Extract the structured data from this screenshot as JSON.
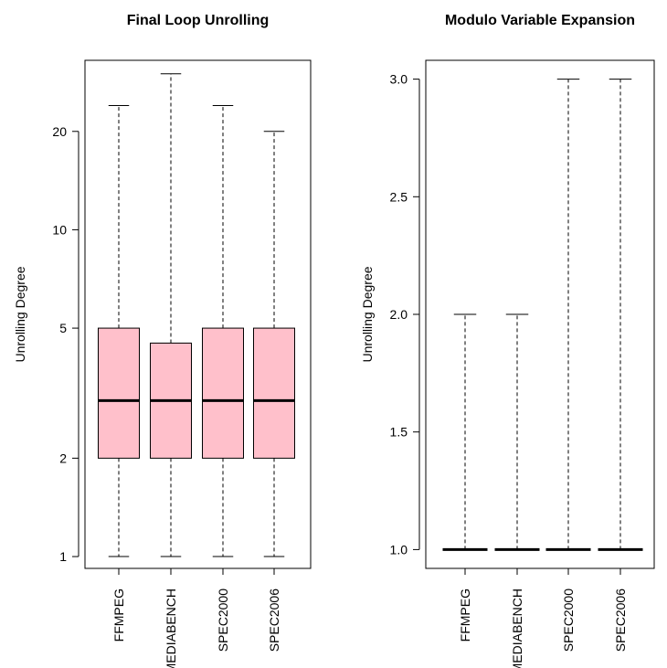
{
  "chart_data": [
    {
      "type": "box",
      "title": "Final Loop Unrolling",
      "xlabel": "",
      "ylabel": "Unrolling Degree",
      "y_scale": "log",
      "ylim": [
        0.92,
        33
      ],
      "yticks": [
        1,
        2,
        5,
        10,
        20
      ],
      "box_color": "#FFC0CB",
      "categories": [
        "FFMPEG",
        "MEDIABENCH",
        "SPEC2000",
        "SPEC2006"
      ],
      "boxes": [
        {
          "category": "FFMPEG",
          "whisker_low": 1,
          "q1": 2,
          "median": 3,
          "q3": 5,
          "whisker_high": 24
        },
        {
          "category": "MEDIABENCH",
          "whisker_low": 1,
          "q1": 2,
          "median": 3,
          "q3": 4.5,
          "whisker_high": 30
        },
        {
          "category": "SPEC2000",
          "whisker_low": 1,
          "q1": 2,
          "median": 3,
          "q3": 5,
          "whisker_high": 24
        },
        {
          "category": "SPEC2006",
          "whisker_low": 1,
          "q1": 2,
          "median": 3,
          "q3": 5,
          "whisker_high": 20
        }
      ]
    },
    {
      "type": "box",
      "title": "Modulo Variable Expansion",
      "xlabel": "",
      "ylabel": "Unrolling Degree",
      "y_scale": "linear",
      "ylim": [
        0.92,
        3.08
      ],
      "yticks": [
        "1.0",
        "1.5",
        "2.0",
        "2.5",
        "3.0"
      ],
      "box_color": "#FFC0CB",
      "categories": [
        "FFMPEG",
        "MEDIABENCH",
        "SPEC2000",
        "SPEC2006"
      ],
      "boxes": [
        {
          "category": "FFMPEG",
          "whisker_low": 1,
          "q1": 1,
          "median": 1,
          "q3": 1,
          "whisker_high": 2
        },
        {
          "category": "MEDIABENCH",
          "whisker_low": 1,
          "q1": 1,
          "median": 1,
          "q3": 1,
          "whisker_high": 2
        },
        {
          "category": "SPEC2000",
          "whisker_low": 1,
          "q1": 1,
          "median": 1,
          "q3": 1,
          "whisker_high": 3
        },
        {
          "category": "SPEC2006",
          "whisker_low": 1,
          "q1": 1,
          "median": 1,
          "q3": 1,
          "whisker_high": 3
        }
      ]
    }
  ]
}
